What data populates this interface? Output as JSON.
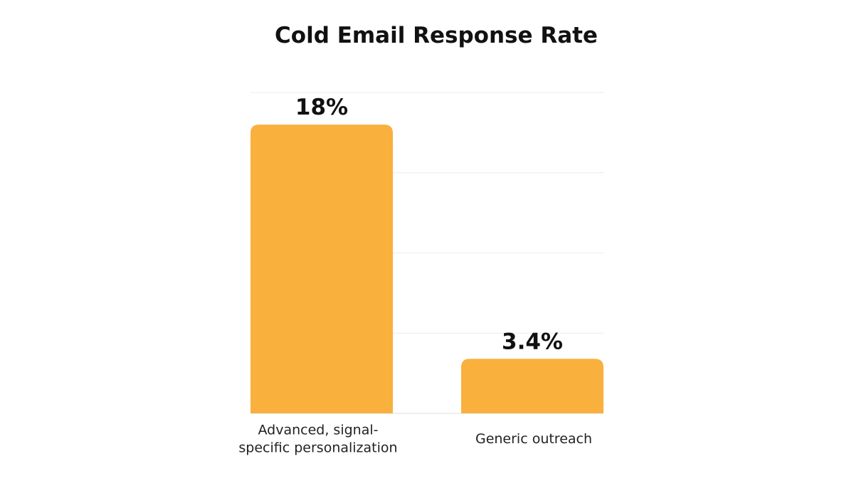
{
  "chart_data": {
    "type": "bar",
    "title": "Cold Email Response Rate",
    "categories": [
      [
        "Advanced, signal-",
        "specific personalization"
      ],
      [
        "Generic outreach"
      ]
    ],
    "values": [
      18,
      3.4
    ],
    "value_labels": [
      "18%",
      "3.4%"
    ],
    "ylim": [
      0,
      20
    ],
    "grid": true,
    "bar_color": "#F9B03D",
    "xlabel": "",
    "ylabel": ""
  }
}
